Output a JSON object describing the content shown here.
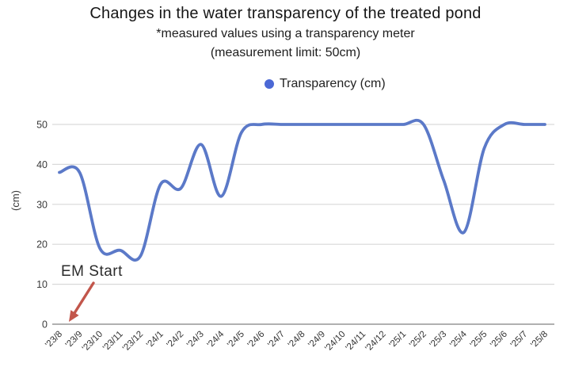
{
  "header": {
    "title": "Changes in the water transparency of the treated pond",
    "subtitle1": "*measured values using a transparency meter",
    "subtitle2": "(measurement limit: 50cm)"
  },
  "legend": {
    "label": "Transparency (cm)"
  },
  "annotation": {
    "label": "EM Start"
  },
  "colors": {
    "series_line": "#5b79c8",
    "legend_dot": "#4b68d5",
    "gridline": "#d9d9d9",
    "axis_line": "#b0b0b0",
    "tick_text": "#3a3a3a",
    "arrow": "#c2564b"
  },
  "chart_data": {
    "type": "line",
    "title": "Changes in the water transparency of the treated pond",
    "subtitle": "*measured values using a transparency meter (measurement limit: 50cm)",
    "categories": [
      "'23/8",
      "'23/9",
      "'23/10",
      "'23/11",
      "'23/12",
      "'24/1",
      "'24/2",
      "'24/3",
      "'24/4",
      "'24/5",
      "'24/6",
      "'24/7",
      "'24/8",
      "'24/9",
      "'24/10",
      "'24/11",
      "'24/12",
      "'25/1",
      "'25/2",
      "'25/3",
      "'25/4",
      "'25/5",
      "'25/6",
      "'25/7",
      "'25/8"
    ],
    "series": [
      {
        "name": "Transparency (cm)",
        "values": [
          38,
          38,
          19,
          18.5,
          17,
          35,
          34,
          45,
          32,
          48,
          50,
          50,
          50,
          50,
          50,
          50,
          50,
          50,
          50,
          36,
          23,
          44,
          50,
          50,
          50
        ]
      }
    ],
    "xlabel": "",
    "ylabel": "(cm)",
    "ylim": [
      0,
      50
    ],
    "yticks": [
      0,
      10,
      20,
      30,
      40,
      50
    ],
    "grid": true,
    "legend_position": "top",
    "line_smooth": true,
    "annotations": [
      {
        "text": "EM Start",
        "target_category": "'23/8"
      }
    ]
  }
}
